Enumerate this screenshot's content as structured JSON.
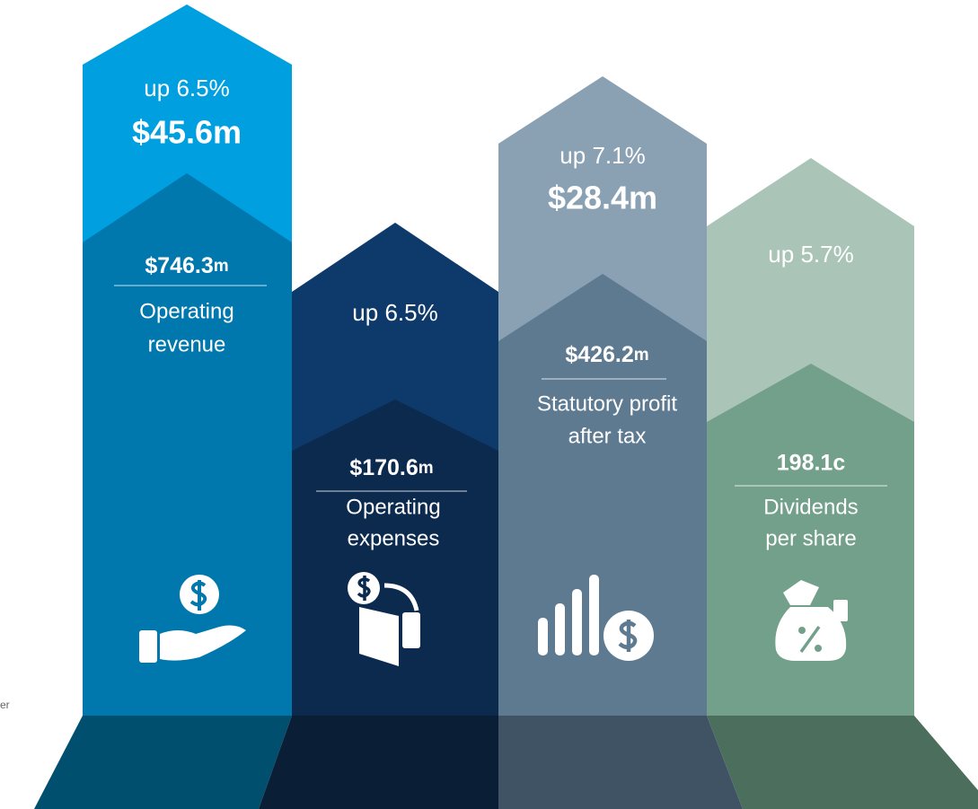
{
  "side_text": "er",
  "columns": [
    {
      "change": "up 6.5%",
      "change_amount": "$45.6m",
      "amount": "$746.3",
      "unit": "m",
      "label": [
        "Operating",
        "revenue"
      ]
    },
    {
      "change": "up 6.5%",
      "amount": "$170.6",
      "unit": "m",
      "label": [
        "Operating",
        "expenses"
      ]
    },
    {
      "change": "up 7.1%",
      "change_amount": "$28.4m",
      "amount": "$426.2",
      "unit": "m",
      "label": [
        "Statutory profit",
        "after tax"
      ]
    },
    {
      "change": "up 5.7%",
      "amount": "198.1c",
      "label": [
        "Dividends",
        "per share"
      ]
    }
  ]
}
